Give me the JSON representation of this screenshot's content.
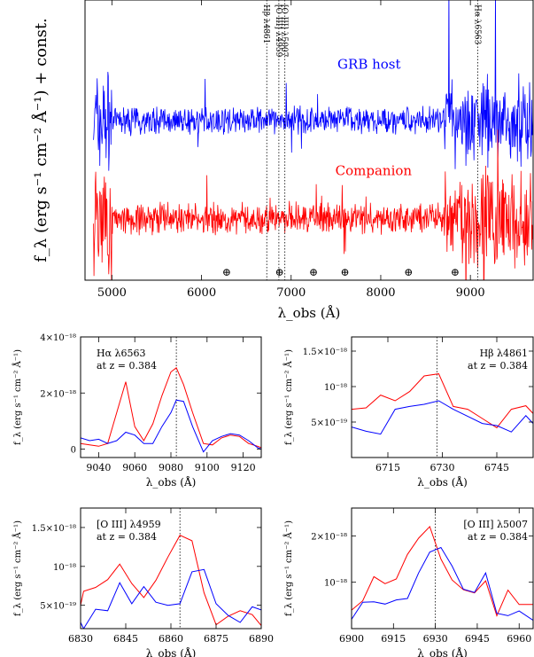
{
  "chart_data": [
    {
      "id": "main",
      "type": "line",
      "xlabel": "λ_obs (Å)",
      "ylabel": "f_λ (erg s⁻¹ cm⁻² Å⁻¹) + const.",
      "xlim": [
        4700,
        9700
      ],
      "ylim": [
        0,
        1
      ],
      "xticks": [
        5000,
        6000,
        7000,
        8000,
        9000
      ],
      "grid": false,
      "series": [
        {
          "name": "GRB host",
          "color": "#0000ff",
          "level": 0.57,
          "noise": 0.07
        },
        {
          "name": "Companion",
          "color": "#ff0000",
          "level": 0.22,
          "noise": 0.08
        }
      ],
      "lines": [
        {
          "x": 6728,
          "label": "Hβ λ4861"
        },
        {
          "x": 6863,
          "label": "[O III] λ4959"
        },
        {
          "x": 6930,
          "label": "[O III] λ5007"
        },
        {
          "x": 9083,
          "label": "Hα λ6563"
        }
      ],
      "telluric": [
        6280,
        6870,
        7250,
        7600,
        8310,
        8830
      ],
      "telluric_symbol": "⊕"
    },
    {
      "id": "ha",
      "type": "line",
      "title": "Hα λ6563",
      "subtitle": "at z = 0.384",
      "xlabel": "λ_obs (Å)",
      "ylabel": "f_λ (erg s⁻¹ cm⁻² Å⁻¹)",
      "xlim": [
        9030,
        9130
      ],
      "ylim": [
        -3e-19,
        4e-18
      ],
      "xticks": [
        9040,
        9060,
        9080,
        9100,
        9120
      ],
      "yticks": [
        0,
        2e-18,
        4e-18
      ],
      "yticklabels": [
        "0",
        "2×10⁻¹⁸",
        "4×10⁻¹⁸"
      ],
      "vline": 9083,
      "series": [
        {
          "color": "#ff0000",
          "x": [
            9030,
            9035,
            9040,
            9045,
            9050,
            9055,
            9060,
            9065,
            9070,
            9075,
            9080,
            9083,
            9087,
            9092,
            9098,
            9103,
            9108,
            9113,
            9118,
            9123,
            9128,
            9130
          ],
          "y": [
            2e-19,
            1.5e-19,
            1e-19,
            2e-19,
            1.3e-18,
            2.4e-18,
            8e-19,
            3e-19,
            9e-19,
            1.9e-18,
            2.75e-18,
            2.9e-18,
            2.3e-18,
            1.3e-18,
            2e-19,
            1.5e-19,
            4e-19,
            5e-19,
            4.5e-19,
            2e-19,
            1e-19,
            5e-20
          ]
        },
        {
          "color": "#0000ff",
          "x": [
            9030,
            9035,
            9040,
            9045,
            9050,
            9055,
            9060,
            9065,
            9070,
            9075,
            9080,
            9083,
            9087,
            9092,
            9098,
            9103,
            9108,
            9113,
            9118,
            9123,
            9128,
            9130
          ],
          "y": [
            4e-19,
            3e-19,
            3.5e-19,
            2e-19,
            3e-19,
            6e-19,
            5e-19,
            2e-19,
            2e-19,
            8e-19,
            1.3e-18,
            1.75e-18,
            1.7e-18,
            8e-19,
            -1e-19,
            3e-19,
            4.5e-19,
            5.5e-19,
            5e-19,
            3e-19,
            5e-20,
            0
          ]
        }
      ]
    },
    {
      "id": "hb",
      "type": "line",
      "title": "Hβ λ4861",
      "subtitle": "at z = 0.384",
      "xlabel": "λ_obs (Å)",
      "ylabel": "f_λ (erg s⁻¹ cm⁻² Å⁻¹)",
      "xlim": [
        6705,
        6755
      ],
      "ylim": [
        0,
        1.7e-18
      ],
      "xticks": [
        6715,
        6730,
        6745
      ],
      "yticks": [
        5e-19,
        1e-18,
        1.5e-18
      ],
      "yticklabels": [
        "5×10⁻¹⁹",
        "10⁻¹⁸",
        "1.5×10⁻¹⁸"
      ],
      "vline": 6728.5,
      "series": [
        {
          "color": "#ff0000",
          "x": [
            6705,
            6709,
            6713,
            6717,
            6721,
            6725,
            6729,
            6733,
            6737,
            6741,
            6745,
            6749,
            6753,
            6755
          ],
          "y": [
            6.8e-19,
            7e-19,
            8.8e-19,
            8e-19,
            9.3e-19,
            1.15e-18,
            1.18e-18,
            7.2e-19,
            6.8e-19,
            5.5e-19,
            4.2e-19,
            6.8e-19,
            7.3e-19,
            6.2e-19
          ]
        },
        {
          "color": "#0000ff",
          "x": [
            6705,
            6709,
            6713,
            6717,
            6721,
            6725,
            6729,
            6733,
            6737,
            6741,
            6745,
            6749,
            6753,
            6755
          ],
          "y": [
            4.3e-19,
            3.7e-19,
            3.3e-19,
            6.8e-19,
            7.2e-19,
            7.5e-19,
            8e-19,
            6.8e-19,
            5.8e-19,
            4.8e-19,
            4.5e-19,
            3.6e-19,
            5.9e-19,
            4.8e-19
          ]
        }
      ]
    },
    {
      "id": "oiii4959",
      "type": "line",
      "title": "[O III] λ4959",
      "subtitle": "at z = 0.384",
      "xlabel": "λ_obs (Å)",
      "ylabel": "f_λ (erg s⁻¹ cm⁻² Å⁻¹)",
      "xlim": [
        6830,
        6890
      ],
      "ylim": [
        2e-19,
        1.75e-18
      ],
      "xticks": [
        6830,
        6845,
        6860,
        6875,
        6890
      ],
      "yticks": [
        5e-19,
        1e-18,
        1.5e-18
      ],
      "yticklabels": [
        "5×10⁻¹⁹",
        "10⁻¹⁸",
        "1.5×10⁻¹⁸"
      ],
      "vline": 6863,
      "series": [
        {
          "color": "#ff0000",
          "x": [
            6830,
            6831,
            6835,
            6839,
            6843,
            6847,
            6851,
            6855,
            6859,
            6863,
            6867,
            6871,
            6875,
            6879,
            6883,
            6887,
            6890
          ],
          "y": [
            5e-19,
            6.8e-19,
            7.3e-19,
            8.3e-19,
            1.03e-18,
            7.8e-19,
            6e-19,
            8.2e-19,
            1.12e-18,
            1.4e-18,
            1.33e-18,
            6.6e-19,
            2.5e-19,
            3.6e-19,
            4.3e-19,
            3.8e-19,
            2.4e-19
          ]
        },
        {
          "color": "#0000ff",
          "x": [
            6830,
            6831,
            6835,
            6839,
            6843,
            6847,
            6851,
            6855,
            6859,
            6863,
            6867,
            6871,
            6875,
            6879,
            6883,
            6887,
            6890
          ],
          "y": [
            2.8e-19,
            2e-19,
            4.5e-19,
            4.3e-19,
            7.9e-19,
            5.2e-19,
            7.4e-19,
            5.4e-19,
            5e-19,
            5.2e-19,
            9.3e-19,
            9.6e-19,
            5.2e-19,
            3.7e-19,
            2.8e-19,
            4.8e-19,
            4.4e-19
          ]
        }
      ]
    },
    {
      "id": "oiii5007",
      "type": "line",
      "title": "[O III] λ5007",
      "subtitle": "at z = 0.384",
      "xlabel": "λ_obs (Å)",
      "ylabel": "f_λ (erg s⁻¹ cm⁻² Å⁻¹)",
      "xlim": [
        6900,
        6965
      ],
      "ylim": [
        0,
        2.6e-18
      ],
      "xticks": [
        6900,
        6915,
        6930,
        6945,
        6960
      ],
      "yticks": [
        1e-18,
        2e-18
      ],
      "yticklabels": [
        "10⁻¹⁸",
        "2×10⁻¹⁸"
      ],
      "vline": 6930,
      "series": [
        {
          "color": "#ff0000",
          "x": [
            6900,
            6904,
            6908,
            6912,
            6916,
            6920,
            6924,
            6928,
            6932,
            6936,
            6940,
            6944,
            6948,
            6952,
            6956,
            6960,
            6965
          ],
          "y": [
            4e-19,
            6e-19,
            1.12e-18,
            9.7e-19,
            1.07e-18,
            1.6e-18,
            1.95e-18,
            2.2e-18,
            1.5e-18,
            1.05e-18,
            8.4e-19,
            7.7e-19,
            1.03e-18,
            2.8e-19,
            8.3e-19,
            5.2e-19,
            5.2e-19
          ]
        },
        {
          "color": "#0000ff",
          "x": [
            6900,
            6904,
            6908,
            6912,
            6916,
            6920,
            6924,
            6928,
            6932,
            6936,
            6940,
            6944,
            6948,
            6952,
            6956,
            6960,
            6965
          ],
          "y": [
            2e-19,
            5.7e-19,
            5.8e-19,
            5.3e-19,
            6.2e-19,
            6.5e-19,
            1.2e-18,
            1.65e-18,
            1.75e-18,
            1.35e-18,
            8.5e-19,
            7.8e-19,
            1.2e-18,
            3.3e-19,
            2.8e-19,
            3.8e-19,
            1.8e-19
          ]
        }
      ]
    }
  ]
}
